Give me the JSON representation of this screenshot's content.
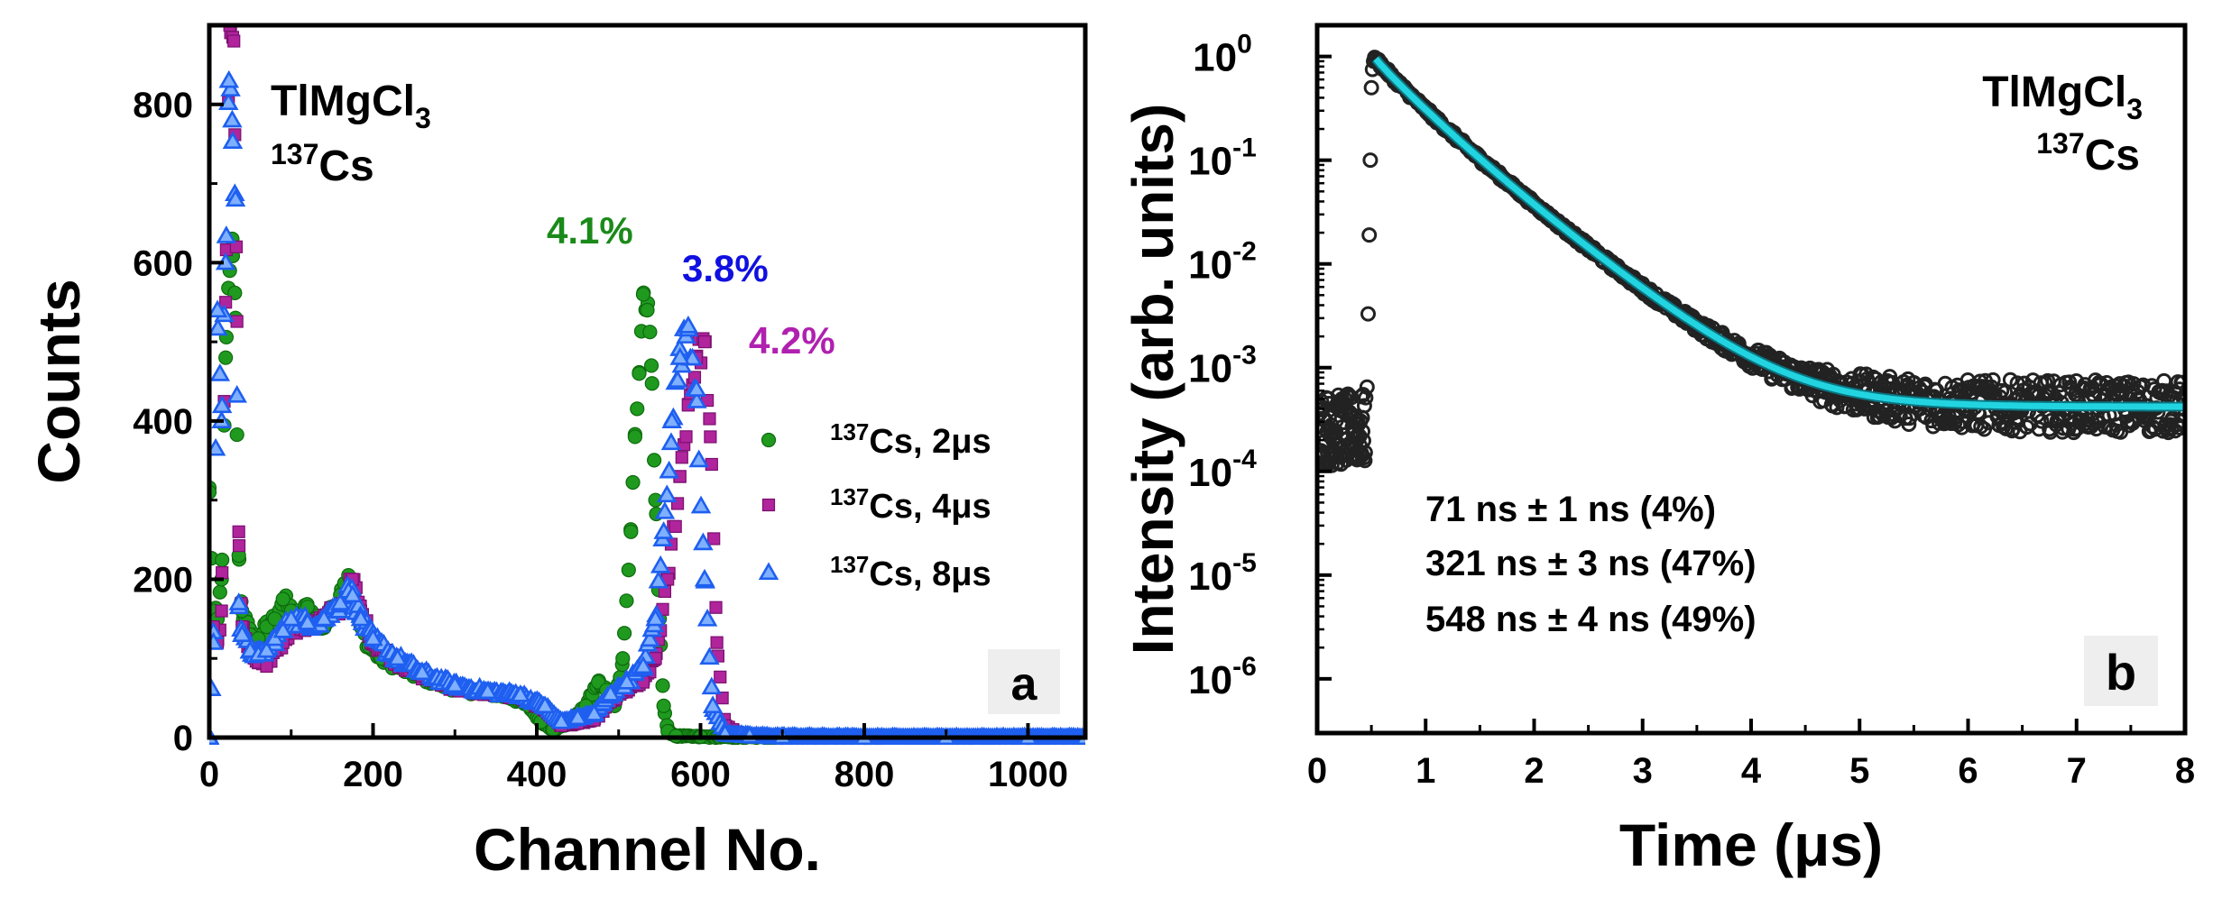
{
  "chart_data": [
    {
      "type": "scatter",
      "panel": "a",
      "xlabel": "Channel No.",
      "ylabel": "Counts",
      "xlim": [
        0,
        1070
      ],
      "ylim": [
        0,
        900
      ],
      "xticks": [
        0,
        200,
        400,
        600,
        800,
        1000
      ],
      "yticks": [
        0,
        200,
        400,
        600,
        800
      ],
      "annotation": {
        "compound": "TlMgCl",
        "compound_sub": "3",
        "isotope_mass": "137",
        "isotope": "Cs"
      },
      "panel_label": "a",
      "resolution_labels": [
        {
          "text": "4.1%",
          "color": "#1a8a1a"
        },
        {
          "text": "3.8%",
          "color": "#1010e0"
        },
        {
          "text": "4.2%",
          "color": "#b020b0"
        }
      ],
      "legend_position": "right",
      "series": [
        {
          "name_sup": "137",
          "name": "Cs, 2μs",
          "marker": "circle",
          "color": "#1f9a1f",
          "x": [
            0,
            5,
            10,
            15,
            20,
            25,
            28,
            32,
            36,
            40,
            50,
            60,
            70,
            80,
            90,
            100,
            110,
            120,
            130,
            140,
            150,
            160,
            165,
            170,
            175,
            185,
            195,
            210,
            230,
            250,
            270,
            290,
            310,
            330,
            350,
            370,
            390,
            405,
            420,
            440,
            460,
            475,
            485,
            495,
            505,
            515,
            520,
            525,
            530,
            535,
            540,
            545,
            550,
            555,
            560,
            570,
            600,
            700,
            800,
            900,
            1000,
            1070
          ],
          "y": [
            310,
            160,
            150,
            200,
            480,
            590,
            630,
            530,
            230,
            160,
            130,
            125,
            140,
            150,
            175,
            160,
            150,
            165,
            150,
            140,
            160,
            180,
            195,
            205,
            175,
            140,
            115,
            100,
            90,
            80,
            72,
            65,
            60,
            57,
            55,
            50,
            40,
            20,
            10,
            18,
            40,
            70,
            60,
            40,
            100,
            260,
            380,
            460,
            560,
            540,
            470,
            300,
            150,
            40,
            8,
            2,
            1,
            0,
            0,
            0,
            0,
            0
          ]
        },
        {
          "name_sup": "137",
          "name": "Cs, 4μs",
          "marker": "square",
          "color": "#b0249c",
          "x": [
            0,
            5,
            10,
            15,
            20,
            25,
            30,
            33,
            36,
            40,
            50,
            60,
            70,
            80,
            90,
            100,
            120,
            140,
            160,
            170,
            175,
            185,
            200,
            230,
            260,
            300,
            340,
            380,
            410,
            430,
            450,
            470,
            490,
            510,
            530,
            545,
            560,
            575,
            585,
            595,
            605,
            612,
            620,
            630,
            650,
            700,
            800,
            900,
            1000,
            1070
          ],
          "y": [
            130,
            140,
            120,
            160,
            550,
            900,
            880,
            620,
            260,
            140,
            105,
            95,
            90,
            110,
            120,
            140,
            140,
            150,
            165,
            185,
            200,
            160,
            120,
            95,
            78,
            62,
            56,
            52,
            35,
            15,
            18,
            22,
            45,
            60,
            70,
            100,
            200,
            330,
            420,
            480,
            500,
            380,
            120,
            15,
            3,
            1,
            0,
            0,
            0,
            0
          ]
        },
        {
          "name_sup": "137",
          "name": "Cs, 8μs",
          "marker": "triangle",
          "color": "#1e5ff0",
          "x": [
            0,
            5,
            10,
            15,
            20,
            24,
            28,
            32,
            36,
            40,
            50,
            60,
            70,
            80,
            90,
            100,
            120,
            140,
            160,
            170,
            175,
            185,
            200,
            230,
            260,
            300,
            340,
            380,
            410,
            430,
            450,
            470,
            490,
            510,
            530,
            545,
            555,
            565,
            575,
            585,
            595,
            605,
            615,
            630,
            660,
            700,
            800,
            900,
            1000,
            1070
          ],
          "y": [
            0,
            120,
            540,
            400,
            600,
            830,
            780,
            680,
            170,
            130,
            110,
            105,
            110,
            125,
            135,
            150,
            145,
            150,
            170,
            185,
            180,
            150,
            125,
            100,
            82,
            66,
            58,
            54,
            40,
            20,
            25,
            30,
            55,
            70,
            90,
            150,
            260,
            400,
            480,
            520,
            440,
            200,
            40,
            5,
            2,
            1,
            0,
            0,
            0,
            0
          ]
        }
      ]
    },
    {
      "type": "scatter",
      "panel": "b",
      "xlabel": "Time (μs)",
      "ylabel": "Intensity (arb. units)",
      "xlim": [
        0,
        8
      ],
      "ylim": [
        3e-07,
        2
      ],
      "yscale": "log",
      "xticks": [
        0,
        1,
        2,
        3,
        4,
        5,
        6,
        7,
        8
      ],
      "ytick_exponents": [
        0,
        -1,
        -2,
        -3,
        -4,
        -5,
        -6
      ],
      "annotation": {
        "compound": "TlMgCl",
        "compound_sub": "3",
        "isotope_mass": "137",
        "isotope": "Cs"
      },
      "panel_label": "b",
      "decay_components": [
        "71 ns ± 1 ns (4%)",
        "321 ns ± 3 ns (47%)",
        "548 ns ± 4 ns (49%)"
      ],
      "fit_color": "#22d4e0",
      "data_color": "#222222",
      "series": [
        {
          "name": "data",
          "rise_x": [
            0.46,
            0.47,
            0.48,
            0.49,
            0.5,
            0.51,
            0.52,
            0.53,
            0.54
          ],
          "rise_y": [
            0.00065,
            0.0033,
            0.019,
            0.1,
            0.5,
            0.75,
            0.9,
            0.98,
            0.95
          ],
          "baseline_level": 0.00025,
          "baseline_x_range": [
            0,
            0.45
          ],
          "tail_x_range": [
            0.55,
            8
          ]
        },
        {
          "name": "fit",
          "t0": 0.54,
          "components": [
            {
              "tau_ns": 71,
              "weight": 0.04
            },
            {
              "tau_ns": 321,
              "weight": 0.47
            },
            {
              "tau_ns": 548,
              "weight": 0.49
            }
          ],
          "amplitude": 0.95,
          "offset": 0.00042
        }
      ]
    }
  ]
}
